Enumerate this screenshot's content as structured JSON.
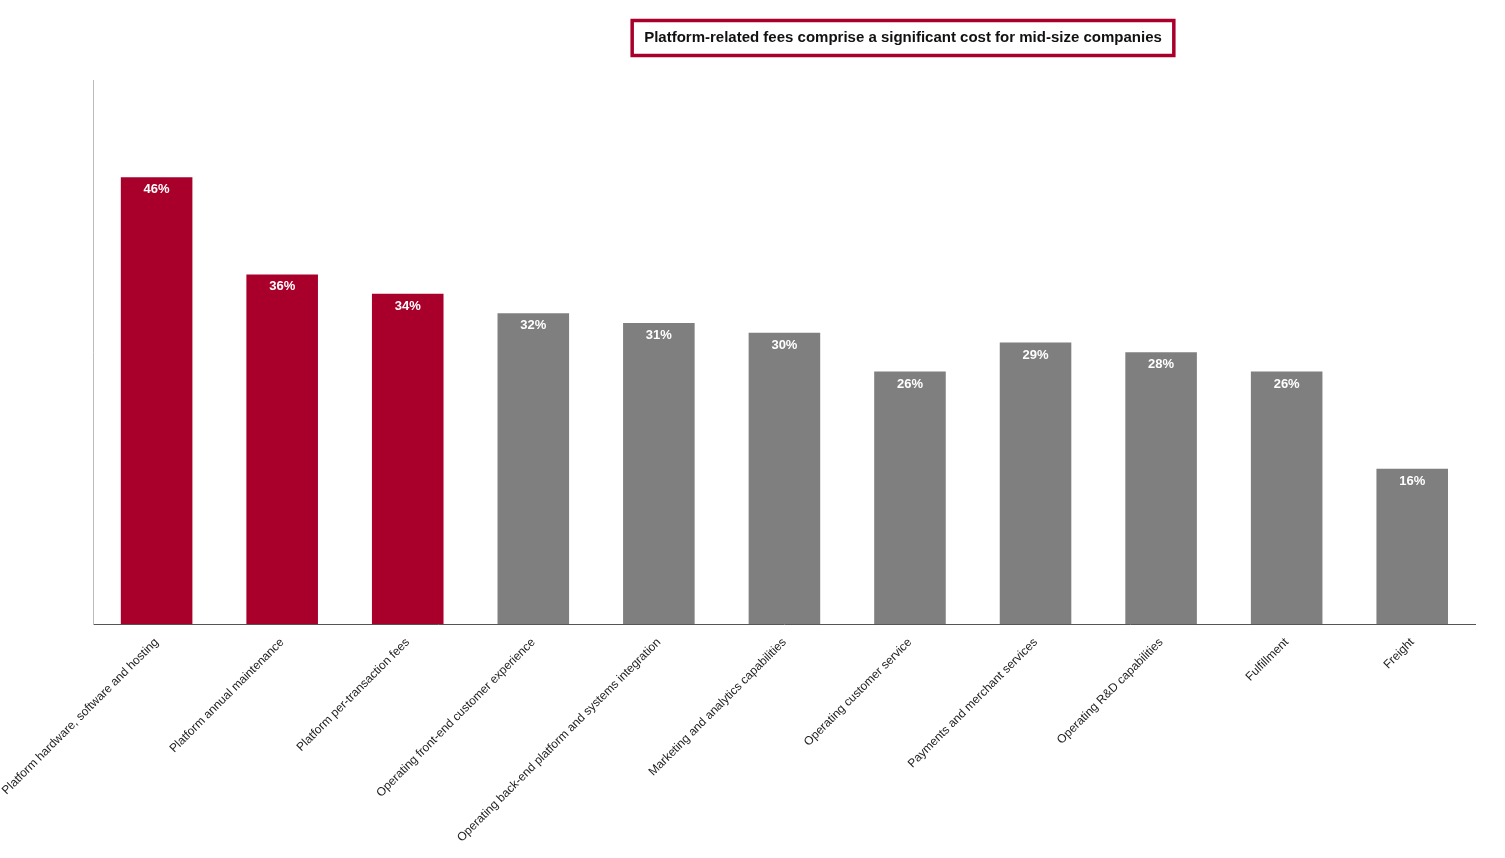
{
  "chart_data": {
    "type": "bar",
    "categories": [
      "Platform hardware, software and hosting",
      "Platform annual maintenance",
      "Platform per-transaction fees",
      "Operating front-end customer experience",
      "Operating back-end platform and systems integration",
      "Marketing and analytics capabilities",
      "Operating customer service",
      "Payments and merchant services",
      "Operating R&D capabilities",
      "Fulfillment",
      "Freight"
    ],
    "values": [
      46,
      36,
      34,
      32,
      31,
      30,
      26,
      29,
      28,
      26,
      16
    ],
    "value_labels": [
      "46%",
      "36%",
      "34%",
      "32%",
      "31%",
      "30%",
      "26%",
      "29%",
      "28%",
      "26%",
      "16%"
    ],
    "data_labels": true,
    "colors": [
      "#A8002A",
      "#A8002A",
      "#A8002A",
      "#7F7F7F",
      "#7F7F7F",
      "#7F7F7F",
      "#7F7F7F",
      "#7F7F7F",
      "#7F7F7F",
      "#7F7F7F",
      "#7F7F7F"
    ],
    "ylim": [
      0,
      56
    ],
    "tick_labels": "x",
    "grid": false,
    "annotations": [
      {
        "text": "Platform-related fees comprise a significant cost for mid-size companies",
        "color": "#A8002A"
      }
    ]
  }
}
